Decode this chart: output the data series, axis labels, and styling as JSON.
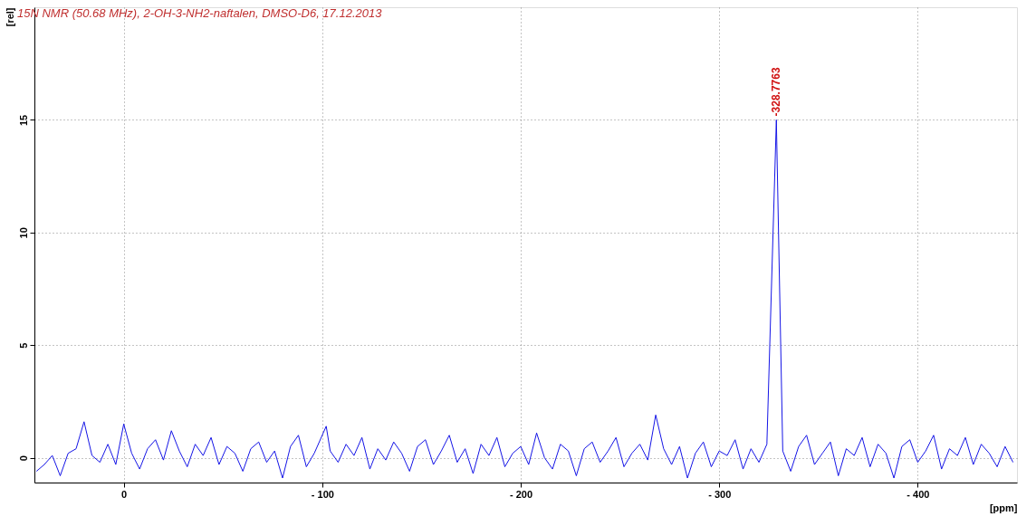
{
  "chart_data": {
    "type": "line",
    "title": "15N NMR (50.68 MHz), 2-OH-3-NH2-naftalen, DMSO-D6, 17.12.2013",
    "xlabel": "[ppm]",
    "ylabel": "[rel]",
    "x": [
      44,
      40,
      36,
      32,
      28,
      24,
      20,
      16,
      12,
      8,
      4,
      0,
      -4,
      -8,
      -12,
      -16,
      -20,
      -24,
      -28,
      -32,
      -36,
      -40,
      -44,
      -48,
      -52,
      -56,
      -60,
      -64,
      -68,
      -72,
      -76,
      -80,
      -84,
      -88,
      -92,
      -96,
      -102,
      -104,
      -108,
      -112,
      -116,
      -120,
      -124,
      -128,
      -132,
      -136,
      -140,
      -144,
      -148,
      -152,
      -156,
      -160,
      -164,
      -168,
      -172,
      -176,
      -180,
      -184,
      -188,
      -192,
      -196,
      -200,
      -204,
      -208,
      -212,
      -216,
      -220,
      -224,
      -228,
      -232,
      -236,
      -240,
      -244,
      -248,
      -252,
      -256,
      -260,
      -264,
      -268,
      -272,
      -276,
      -280,
      -284,
      -288,
      -292,
      -296,
      -300,
      -304,
      -308,
      -312,
      -316,
      -320,
      -324,
      -328.7763,
      -332,
      -336,
      -340,
      -344,
      -348,
      -352,
      -356,
      -360,
      -364,
      -368,
      -372,
      -376,
      -380,
      -384,
      -388,
      -392,
      -396,
      -400,
      -404,
      -408,
      -412,
      -416,
      -420,
      -424,
      -428,
      -432,
      -436,
      -440,
      -444,
      -448
    ],
    "series": [
      {
        "color": "#1414e6",
        "values": [
          -0.6,
          -0.3,
          0.1,
          -0.8,
          0.2,
          0.4,
          1.6,
          0.1,
          -0.2,
          0.6,
          -0.3,
          1.5,
          0.2,
          -0.5,
          0.4,
          0.8,
          -0.1,
          1.2,
          0.3,
          -0.4,
          0.6,
          0.1,
          0.9,
          -0.3,
          0.5,
          0.2,
          -0.6,
          0.4,
          0.7,
          -0.2,
          0.3,
          -0.9,
          0.5,
          1.0,
          -0.4,
          0.2,
          1.4,
          0.3,
          -0.2,
          0.6,
          0.1,
          0.9,
          -0.5,
          0.4,
          -0.1,
          0.7,
          0.2,
          -0.6,
          0.5,
          0.8,
          -0.3,
          0.3,
          1.0,
          -0.2,
          0.4,
          -0.7,
          0.6,
          0.1,
          0.9,
          -0.4,
          0.2,
          0.5,
          -0.3,
          1.1,
          0.0,
          -0.5,
          0.6,
          0.3,
          -0.8,
          0.4,
          0.7,
          -0.2,
          0.3,
          0.9,
          -0.4,
          0.2,
          0.6,
          -0.1,
          1.9,
          0.4,
          -0.3,
          0.5,
          -0.9,
          0.2,
          0.7,
          -0.4,
          0.3,
          0.1,
          0.8,
          -0.5,
          0.4,
          -0.2,
          0.6,
          15,
          0.3,
          -0.6,
          0.5,
          1.0,
          -0.3,
          0.2,
          0.7,
          -0.8,
          0.4,
          0.1,
          0.9,
          -0.4,
          0.6,
          0.2,
          -0.9,
          0.5,
          0.8,
          -0.2,
          0.3,
          1.0,
          -0.5,
          0.4,
          0.1,
          0.9,
          -0.3,
          0.6,
          0.2,
          -0.4,
          0.5,
          -0.2
        ]
      }
    ],
    "xlim": [
      45,
      -450
    ],
    "xticks": [
      0,
      {
        "value": -100,
        "label": "- 100"
      },
      {
        "value": -200,
        "label": "- 200"
      },
      {
        "value": -300,
        "label": "- 300"
      },
      {
        "value": -400,
        "label": "- 400"
      }
    ],
    "ylim": [
      -1.1,
      20
    ],
    "yticks": [
      0,
      5,
      10,
      15
    ],
    "grid": true,
    "line_style": "solid",
    "marker": "none",
    "annotations": [
      {
        "text": "-328.7763",
        "x": -328.7763,
        "y": 15
      }
    ]
  }
}
